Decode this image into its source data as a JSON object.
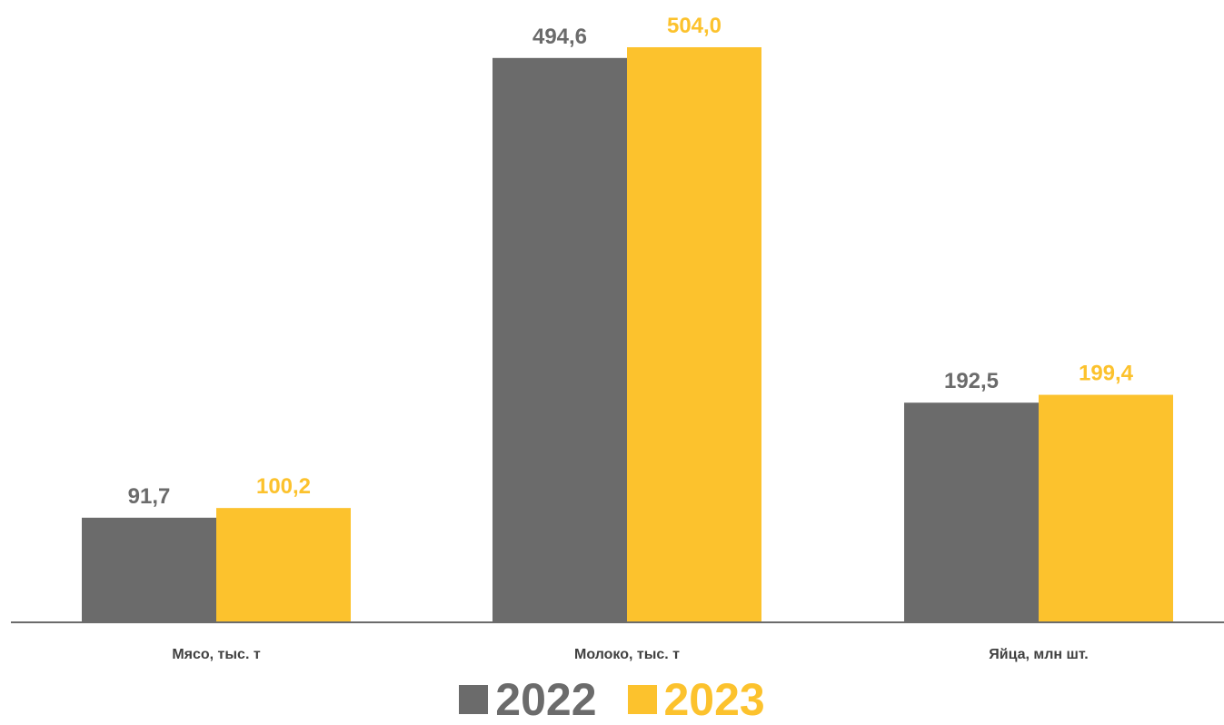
{
  "chart_data": {
    "type": "bar",
    "categories": [
      "Мясо, тыс. т",
      "Молоко, тыс. т",
      "Яйца, млн шт."
    ],
    "series": [
      {
        "name": "2022",
        "values": [
          91.7,
          494.6,
          192.5
        ],
        "labels": [
          "91,7",
          "494,6",
          "192,5"
        ],
        "color": "#6b6b6b"
      },
      {
        "name": "2023",
        "values": [
          100.2,
          504.0,
          199.4
        ],
        "labels": [
          "100,2",
          "504,0",
          "199,4"
        ],
        "color": "#fcc22d"
      }
    ],
    "ylim": [
      0,
      504
    ],
    "grid": false,
    "legend_position": "bottom",
    "category_label_color": "#404040"
  }
}
